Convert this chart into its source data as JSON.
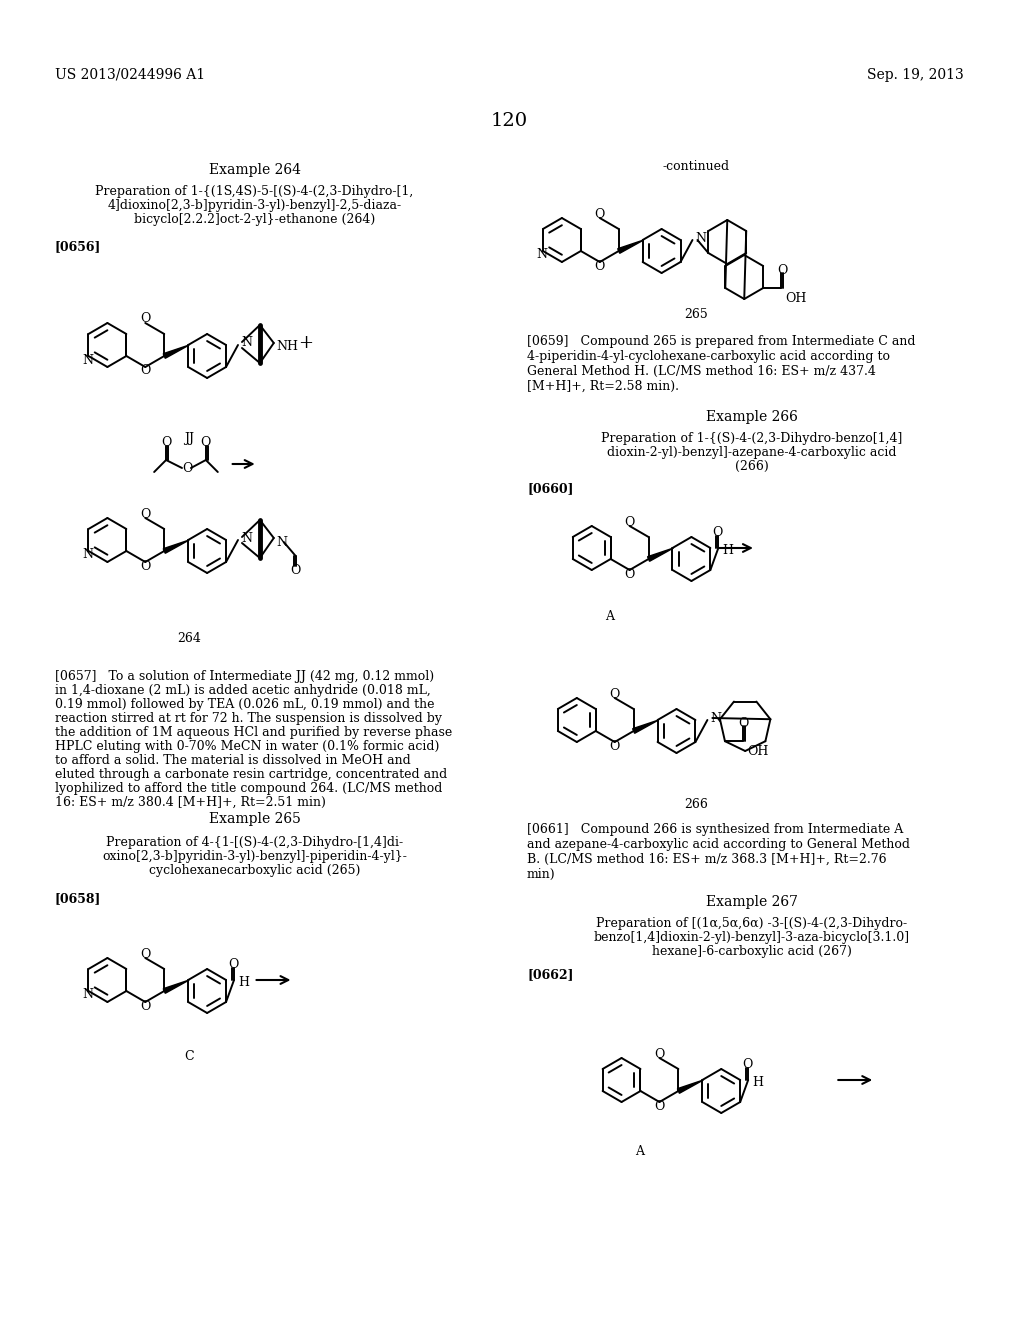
{
  "bg": "#ffffff",
  "tc": "#000000",
  "header_left": "US 2013/0244996 A1",
  "header_right": "Sep. 19, 2013",
  "page_num": "120",
  "continued": "-continued",
  "ex264_title": "Example 264",
  "ex264_prep1": "Preparation of 1-{(1S,4S)-5-[(S)-4-(2,3-Dihydro-[1,",
  "ex264_prep2": "4]dioxino[2,3-b]pyridin-3-yl)-benzyl]-2,5-diaza-",
  "ex264_prep3": "bicyclo[2.2.2]oct-2-yl}-ethanone (264)",
  "p0656": "[0656]",
  "p0657_1": "[0657]   To a solution of Intermediate JJ (42 mg, 0.12 mmol)",
  "p0657_2": "in 1,4-dioxane (2 mL) is added acetic anhydride (0.018 mL,",
  "p0657_3": "0.19 mmol) followed by TEA (0.026 mL, 0.19 mmol) and the",
  "p0657_4": "reaction stirred at rt for 72 h. The suspension is dissolved by",
  "p0657_5": "the addition of 1M aqueous HCl and purified by reverse phase",
  "p0657_6": "HPLC eluting with 0-70% MeCN in water (0.1% formic acid)",
  "p0657_7": "to afford a solid. The material is dissolved in MeOH and",
  "p0657_8": "eluted through a carbonate resin cartridge, concentrated and",
  "p0657_9": "lyophilized to afford the title compound 264. (LC/MS method",
  "p0657_10": "16: ES+ m/z 380.4 [M+H]+, Rt=2.51 min)",
  "ex265_title": "Example 265",
  "ex265_prep1": "Preparation of 4-{1-[(S)-4-(2,3-Dihydro-[1,4]di-",
  "ex265_prep2": "oxino[2,3-b]pyridin-3-yl)-benzyl]-piperidin-4-yl}-",
  "ex265_prep3": "cyclohexanecarboxylic acid (265)",
  "p0658": "[0658]",
  "p0659_1": "[0659]   Compound 265 is prepared from Intermediate C and",
  "p0659_2": "4-piperidin-4-yl-cyclohexane-carboxylic acid according to",
  "p0659_3": "General Method H. (LC/MS method 16: ES+ m/z 437.4",
  "p0659_4": "[M+H]+, Rt=2.58 min).",
  "ex266_title": "Example 266",
  "ex266_prep1": "Preparation of 1-{(S)-4-(2,3-Dihydro-benzo[1,4]",
  "ex266_prep2": "dioxin-2-yl)-benzyl]-azepane-4-carboxylic acid",
  "ex266_prep3": "(266)",
  "p0660": "[0660]",
  "p0661_1": "[0661]   Compound 266 is synthesized from Intermediate A",
  "p0661_2": "and azepane-4-carboxylic acid according to General Method",
  "p0661_3": "B. (LC/MS method 16: ES+ m/z 368.3 [M+H]+, Rt=2.76",
  "p0661_4": "min)",
  "ex267_title": "Example 267",
  "ex267_prep1": "Preparation of [(1α,5α,6α) -3-[(S)-4-(2,3-Dihydro-",
  "ex267_prep2": "benzo[1,4]dioxin-2-yl)-benzyl]-3-aza-bicyclo[3.1.0]",
  "ex267_prep3": "hexane]-6-carboxylic acid (267)",
  "p0662": "[0662]"
}
